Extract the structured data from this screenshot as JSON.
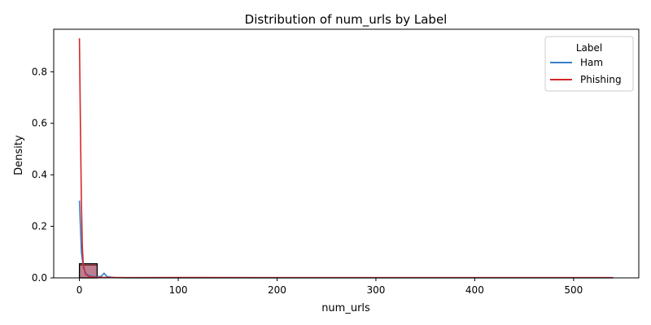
{
  "chart_data": {
    "type": "histogram+kde",
    "title": "Distribution of num_urls by Label",
    "xlabel": "num_urls",
    "ylabel": "Density",
    "xlim": [
      -26,
      566
    ],
    "ylim": [
      0,
      0.965
    ],
    "xticks": [
      0,
      100,
      200,
      300,
      400,
      500
    ],
    "yticks": [
      0.0,
      0.2,
      0.4,
      0.6,
      0.8
    ],
    "xtick_labels": [
      "0",
      "100",
      "200",
      "300",
      "400",
      "500"
    ],
    "ytick_labels": [
      "0.0",
      "0.2",
      "0.4",
      "0.6",
      "0.8"
    ],
    "grid": false,
    "legend": {
      "title": "Label",
      "placement": "top-right"
    },
    "histogram": {
      "bins": [
        {
          "x0": 0,
          "x1": 18,
          "ham": 0.05,
          "phishing": 0.055
        }
      ]
    },
    "series": [
      {
        "name": "Ham",
        "color": "#3a7fc8",
        "points": [
          [
            0,
            0.3
          ],
          [
            2,
            0.1
          ],
          [
            4,
            0.04
          ],
          [
            7,
            0.015
          ],
          [
            12,
            0.006
          ],
          [
            18,
            0.004
          ],
          [
            22,
            0.006
          ],
          [
            25,
            0.018
          ],
          [
            28,
            0.005
          ],
          [
            35,
            0.001
          ],
          [
            50,
            0.0
          ],
          [
            100,
            0.0
          ],
          [
            200,
            0.0
          ],
          [
            300,
            0.0
          ],
          [
            400,
            0.0
          ],
          [
            500,
            0.0
          ],
          [
            540,
            0.0
          ]
        ]
      },
      {
        "name": "Phishing",
        "color": "#d62728",
        "points": [
          [
            0,
            0.93
          ],
          [
            1,
            0.6
          ],
          [
            2,
            0.3
          ],
          [
            3,
            0.12
          ],
          [
            4,
            0.05
          ],
          [
            6,
            0.015
          ],
          [
            10,
            0.004
          ],
          [
            20,
            0.002
          ],
          [
            50,
            0.001
          ],
          [
            100,
            0.0015
          ],
          [
            200,
            0.001
          ],
          [
            300,
            0.001
          ],
          [
            400,
            0.001
          ],
          [
            500,
            0.001
          ],
          [
            540,
            0.001
          ]
        ]
      }
    ]
  }
}
